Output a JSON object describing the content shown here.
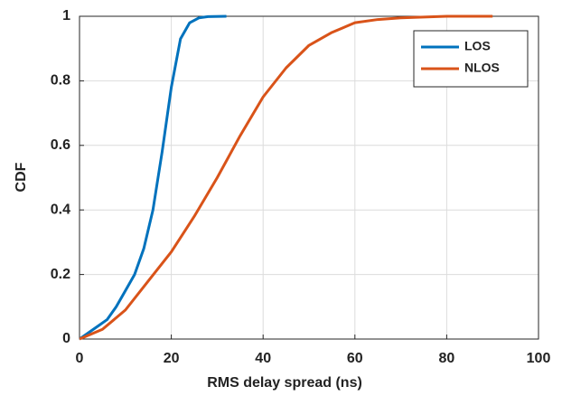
{
  "chart_data": {
    "type": "line",
    "xlabel": "RMS delay spread (ns)",
    "ylabel": "CDF",
    "xlim": [
      0,
      100
    ],
    "xticks": [
      0,
      20,
      40,
      60,
      80,
      100
    ],
    "ylim": [
      0,
      1
    ],
    "yticks": [
      0,
      0.2,
      0.4,
      0.6,
      0.8,
      1
    ],
    "grid": true,
    "legend": "northeast",
    "series": [
      {
        "name": "LOS",
        "color": "#0072bd",
        "x": [
          0,
          2,
          4,
          6,
          8,
          10,
          12,
          14,
          16,
          18,
          20,
          22,
          24,
          26,
          28,
          32
        ],
        "values": [
          0,
          0.02,
          0.04,
          0.06,
          0.1,
          0.15,
          0.2,
          0.28,
          0.4,
          0.58,
          0.78,
          0.93,
          0.98,
          0.995,
          0.999,
          1
        ]
      },
      {
        "name": "NLOS",
        "color": "#d95319",
        "x": [
          0,
          5,
          10,
          15,
          20,
          25,
          30,
          35,
          40,
          45,
          50,
          55,
          60,
          65,
          70,
          80,
          90
        ],
        "values": [
          0,
          0.03,
          0.09,
          0.18,
          0.27,
          0.38,
          0.5,
          0.63,
          0.75,
          0.84,
          0.91,
          0.95,
          0.98,
          0.99,
          0.995,
          1,
          1
        ]
      }
    ]
  }
}
